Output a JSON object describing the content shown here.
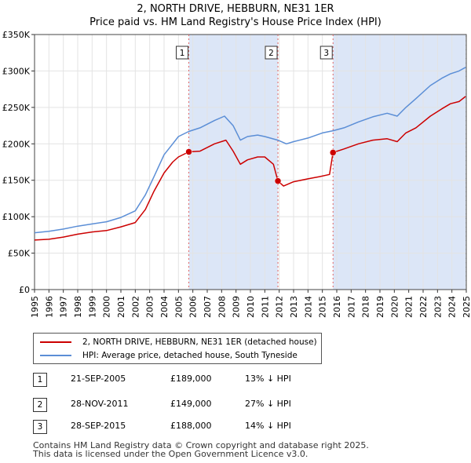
{
  "title_line1": "2, NORTH DRIVE, HEBBURN, NE31 1ER",
  "title_line2": "Price paid vs. HM Land Registry's House Price Index (HPI)",
  "colors": {
    "property": "#cc0000",
    "hpi": "#5b8ed6",
    "shade": "#dce6f7",
    "vline": "#e06666"
  },
  "chart_data": {
    "type": "line",
    "title": "Price paid vs. HM Land Registry's House Price Index (HPI)",
    "xlabel": "",
    "ylabel": "",
    "xlim": [
      1995,
      2025
    ],
    "ylim": [
      0,
      350000
    ],
    "x_ticks": [
      "1995",
      "1996",
      "1997",
      "1998",
      "1999",
      "2000",
      "2001",
      "2002",
      "2003",
      "2004",
      "2005",
      "2006",
      "2007",
      "2008",
      "2009",
      "2010",
      "2011",
      "2012",
      "2013",
      "2014",
      "2015",
      "2016",
      "2017",
      "2018",
      "2019",
      "2020",
      "2021",
      "2022",
      "2023",
      "2024",
      "2025"
    ],
    "y_ticks": [
      {
        "value": 0,
        "label": "£0"
      },
      {
        "value": 50000,
        "label": "£50K"
      },
      {
        "value": 100000,
        "label": "£100K"
      },
      {
        "value": 150000,
        "label": "£150K"
      },
      {
        "value": 200000,
        "label": "£200K"
      },
      {
        "value": 250000,
        "label": "£250K"
      },
      {
        "value": 300000,
        "label": "£300K"
      },
      {
        "value": 350000,
        "label": "£350K"
      }
    ],
    "grid": true,
    "series": [
      {
        "name": "2, NORTH DRIVE, HEBBURN, NE31 1ER (detached house)",
        "points": [
          [
            1995.0,
            68000
          ],
          [
            1996.0,
            69000
          ],
          [
            1997.0,
            72000
          ],
          [
            1998.0,
            76000
          ],
          [
            1999.0,
            79000
          ],
          [
            2000.0,
            81000
          ],
          [
            2001.0,
            86000
          ],
          [
            2002.0,
            92000
          ],
          [
            2002.7,
            110000
          ],
          [
            2003.3,
            135000
          ],
          [
            2004.0,
            160000
          ],
          [
            2004.6,
            175000
          ],
          [
            2005.0,
            182000
          ],
          [
            2005.72,
            189000
          ],
          [
            2006.5,
            190000
          ],
          [
            2007.5,
            200000
          ],
          [
            2008.3,
            205000
          ],
          [
            2008.8,
            190000
          ],
          [
            2009.3,
            172000
          ],
          [
            2009.8,
            178000
          ],
          [
            2010.5,
            182000
          ],
          [
            2011.0,
            182000
          ],
          [
            2011.6,
            172000
          ],
          [
            2011.91,
            149000
          ],
          [
            2012.3,
            142000
          ],
          [
            2013.0,
            148000
          ],
          [
            2014.0,
            152000
          ],
          [
            2014.8,
            155000
          ],
          [
            2015.5,
            158000
          ],
          [
            2015.74,
            188000
          ],
          [
            2016.5,
            193000
          ],
          [
            2017.5,
            200000
          ],
          [
            2018.5,
            205000
          ],
          [
            2019.5,
            207000
          ],
          [
            2020.2,
            203000
          ],
          [
            2020.8,
            215000
          ],
          [
            2021.5,
            222000
          ],
          [
            2022.5,
            238000
          ],
          [
            2023.3,
            248000
          ],
          [
            2023.9,
            255000
          ],
          [
            2024.5,
            258000
          ],
          [
            2024.95,
            265000
          ]
        ]
      },
      {
        "name": "HPI: Average price, detached house, South Tyneside",
        "points": [
          [
            1995.0,
            78000
          ],
          [
            1996.0,
            80000
          ],
          [
            1997.0,
            83000
          ],
          [
            1998.0,
            87000
          ],
          [
            1999.0,
            90000
          ],
          [
            2000.0,
            93000
          ],
          [
            2001.0,
            99000
          ],
          [
            2002.0,
            108000
          ],
          [
            2002.7,
            130000
          ],
          [
            2003.3,
            155000
          ],
          [
            2004.0,
            185000
          ],
          [
            2004.6,
            200000
          ],
          [
            2005.0,
            210000
          ],
          [
            2005.72,
            217000
          ],
          [
            2006.5,
            222000
          ],
          [
            2007.5,
            232000
          ],
          [
            2008.2,
            238000
          ],
          [
            2008.8,
            225000
          ],
          [
            2009.3,
            205000
          ],
          [
            2009.8,
            210000
          ],
          [
            2010.5,
            212000
          ],
          [
            2011.0,
            210000
          ],
          [
            2011.91,
            205000
          ],
          [
            2012.5,
            200000
          ],
          [
            2013.0,
            203000
          ],
          [
            2014.0,
            208000
          ],
          [
            2015.0,
            215000
          ],
          [
            2015.74,
            218000
          ],
          [
            2016.5,
            222000
          ],
          [
            2017.5,
            230000
          ],
          [
            2018.5,
            237000
          ],
          [
            2019.5,
            242000
          ],
          [
            2020.2,
            238000
          ],
          [
            2020.8,
            250000
          ],
          [
            2021.5,
            262000
          ],
          [
            2022.5,
            280000
          ],
          [
            2023.3,
            290000
          ],
          [
            2023.9,
            296000
          ],
          [
            2024.5,
            300000
          ],
          [
            2024.95,
            305000
          ]
        ]
      }
    ],
    "sale_markers": [
      {
        "label": "1",
        "x": 2005.72,
        "value": 189000
      },
      {
        "label": "2",
        "x": 2011.91,
        "value": 149000
      },
      {
        "label": "3",
        "x": 2015.74,
        "value": 188000
      }
    ],
    "shaded_periods": [
      [
        2005.72,
        2011.91
      ],
      [
        2015.74,
        2024.95
      ]
    ],
    "hatched_after": 2024.95
  },
  "legend": {
    "property_label": "2, NORTH DRIVE, HEBBURN, NE31 1ER (detached house)",
    "hpi_label": "HPI: Average price, detached house, South Tyneside"
  },
  "transactions": [
    {
      "num": "1",
      "date": "21-SEP-2005",
      "price": "£189,000",
      "delta": "13% ↓ HPI"
    },
    {
      "num": "2",
      "date": "28-NOV-2011",
      "price": "£149,000",
      "delta": "27% ↓ HPI"
    },
    {
      "num": "3",
      "date": "28-SEP-2015",
      "price": "£188,000",
      "delta": "14% ↓ HPI"
    }
  ],
  "footer_line1": "Contains HM Land Registry data © Crown copyright and database right 2025.",
  "footer_line2": "This data is licensed under the Open Government Licence v3.0."
}
